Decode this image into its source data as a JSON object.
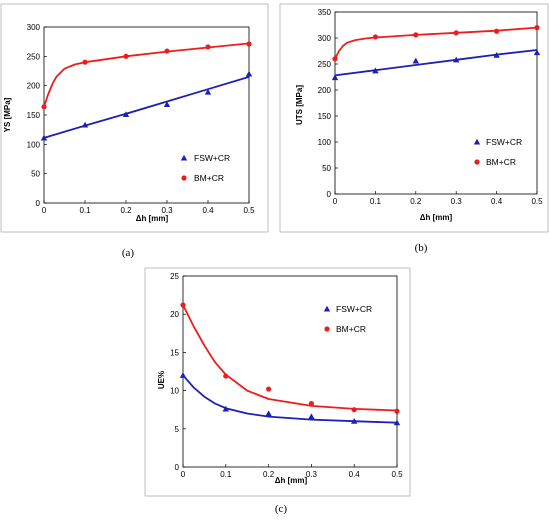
{
  "colors": {
    "fsw": "#1f1fb4",
    "bm": "#ee1c1c",
    "frame": "#b0b0b0"
  },
  "chart_data": [
    {
      "panel": "(a)",
      "type": "scatter",
      "xlabel": "Δh [mm]",
      "ylabel": "YS [MPa]",
      "xlim": [
        0,
        0.5
      ],
      "ylim": [
        0,
        300
      ],
      "x_ticks": [
        "0",
        "0.1",
        "0.2",
        "0.3",
        "0.4",
        "0.5"
      ],
      "y_ticks": [
        "0",
        "50",
        "100",
        "150",
        "200",
        "250",
        "300"
      ],
      "legend_position": "bottom-right",
      "series": [
        {
          "name": "FSW+CR",
          "marker": "triangle",
          "color": "#1f1fb4",
          "x": [
            0,
            0.1,
            0.2,
            0.3,
            0.4,
            0.5
          ],
          "y": [
            111,
            133,
            151,
            168,
            189,
            220
          ],
          "fit": [
            [
              0,
              111
            ],
            [
              0.1,
              132
            ],
            [
              0.2,
              152
            ],
            [
              0.3,
              173
            ],
            [
              0.4,
              194
            ],
            [
              0.5,
              215
            ]
          ]
        },
        {
          "name": "BM+CR",
          "marker": "circle",
          "color": "#ee1c1c",
          "x": [
            0,
            0.1,
            0.2,
            0.3,
            0.4,
            0.5
          ],
          "y": [
            164,
            240,
            250,
            259,
            266,
            271
          ],
          "fit": [
            [
              0,
              164
            ],
            [
              0.01,
              185
            ],
            [
              0.02,
              202
            ],
            [
              0.03,
              215
            ],
            [
              0.05,
              229
            ],
            [
              0.075,
              236
            ],
            [
              0.1,
              240
            ],
            [
              0.15,
              245
            ],
            [
              0.2,
              250
            ],
            [
              0.3,
              258
            ],
            [
              0.4,
              265
            ],
            [
              0.5,
              272
            ]
          ]
        }
      ]
    },
    {
      "panel": "(b)",
      "type": "scatter",
      "xlabel": "Δh [mm]",
      "ylabel": "UTS [MPa]",
      "xlim": [
        0,
        0.5
      ],
      "ylim": [
        0,
        350
      ],
      "x_ticks": [
        "0",
        "0.1",
        "0.2",
        "0.3",
        "0.4",
        "0.5"
      ],
      "y_ticks": [
        "0",
        "50",
        "100",
        "150",
        "200",
        "250",
        "300",
        "350"
      ],
      "legend_position": "bottom-right",
      "series": [
        {
          "name": "FSW+CR",
          "marker": "triangle",
          "color": "#1f1fb4",
          "x": [
            0,
            0.1,
            0.2,
            0.3,
            0.4,
            0.5
          ],
          "y": [
            224,
            237,
            256,
            258,
            267,
            272
          ],
          "fit": [
            [
              0,
              228
            ],
            [
              0.1,
              238
            ],
            [
              0.2,
              248
            ],
            [
              0.3,
              258
            ],
            [
              0.4,
              268
            ],
            [
              0.5,
              277
            ]
          ]
        },
        {
          "name": "BM+CR",
          "marker": "circle",
          "color": "#ee1c1c",
          "x": [
            0,
            0.1,
            0.2,
            0.3,
            0.4,
            0.5
          ],
          "y": [
            260,
            302,
            306,
            310,
            313,
            320
          ],
          "fit": [
            [
              0,
              260
            ],
            [
              0.01,
              275
            ],
            [
              0.02,
              285
            ],
            [
              0.03,
              291
            ],
            [
              0.05,
              296
            ],
            [
              0.075,
              299
            ],
            [
              0.1,
              301
            ],
            [
              0.2,
              306
            ],
            [
              0.3,
              310
            ],
            [
              0.4,
              314
            ],
            [
              0.5,
              320
            ]
          ]
        }
      ]
    },
    {
      "panel": "(c)",
      "type": "scatter",
      "xlabel": "Δh [mm]",
      "ylabel": "UE%",
      "xlim": [
        0,
        0.5
      ],
      "ylim": [
        0,
        25
      ],
      "x_ticks": [
        "0",
        "0.1",
        "0.2",
        "0.3",
        "0.4",
        "0.5"
      ],
      "y_ticks": [
        "0",
        "5",
        "10",
        "15",
        "20",
        "25"
      ],
      "legend_position": "top-right",
      "series": [
        {
          "name": "FSW+CR",
          "marker": "triangle",
          "color": "#1f1fb4",
          "x": [
            0,
            0.1,
            0.2,
            0.3,
            0.4,
            0.5
          ],
          "y": [
            12.0,
            7.6,
            7.0,
            6.6,
            6.0,
            5.8
          ],
          "fit": [
            [
              0,
              12.0
            ],
            [
              0.025,
              10.4
            ],
            [
              0.05,
              9.2
            ],
            [
              0.075,
              8.3
            ],
            [
              0.1,
              7.7
            ],
            [
              0.15,
              7.0
            ],
            [
              0.2,
              6.6
            ],
            [
              0.3,
              6.2
            ],
            [
              0.4,
              6.0
            ],
            [
              0.5,
              5.8
            ]
          ]
        },
        {
          "name": "BM+CR",
          "marker": "circle",
          "color": "#ee1c1c",
          "x": [
            0,
            0.1,
            0.2,
            0.3,
            0.4,
            0.5
          ],
          "y": [
            21.2,
            11.9,
            10.2,
            8.3,
            7.5,
            7.3
          ],
          "fit": [
            [
              0,
              21.2
            ],
            [
              0.025,
              18.4
            ],
            [
              0.05,
              15.9
            ],
            [
              0.075,
              13.7
            ],
            [
              0.1,
              12.1
            ],
            [
              0.15,
              10.0
            ],
            [
              0.2,
              8.9
            ],
            [
              0.3,
              8.0
            ],
            [
              0.4,
              7.6
            ],
            [
              0.5,
              7.4
            ]
          ]
        }
      ]
    }
  ]
}
